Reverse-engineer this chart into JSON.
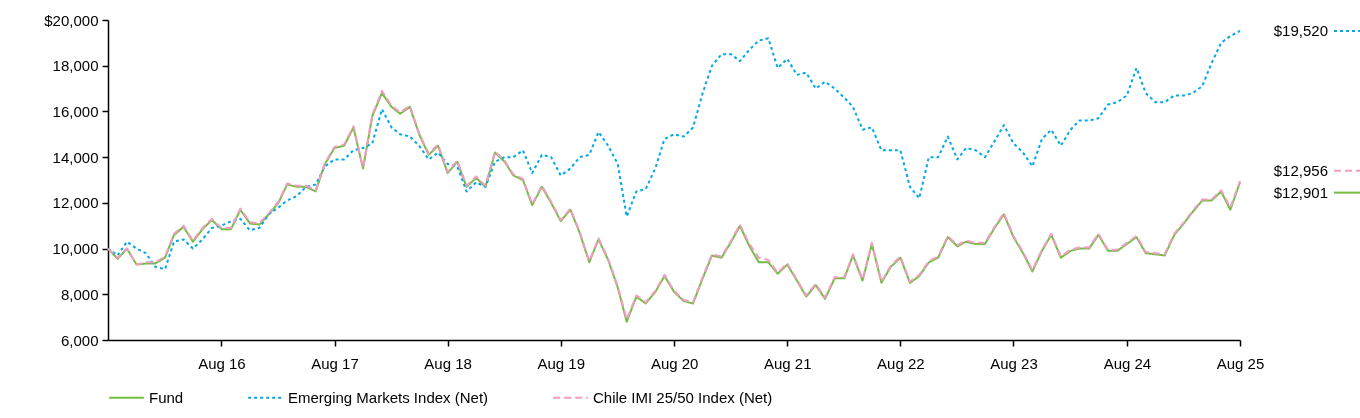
{
  "chart_data": {
    "type": "line",
    "x": [
      "2015-08",
      "2015-09",
      "2015-10",
      "2015-11",
      "2015-12",
      "2016-01",
      "2016-02",
      "2016-03",
      "2016-04",
      "2016-05",
      "2016-06",
      "2016-07",
      "2016-08",
      "2016-09",
      "2016-10",
      "2016-11",
      "2016-12",
      "2017-01",
      "2017-02",
      "2017-03",
      "2017-04",
      "2017-05",
      "2017-06",
      "2017-07",
      "2017-08",
      "2017-09",
      "2017-10",
      "2017-11",
      "2017-12",
      "2018-01",
      "2018-02",
      "2018-03",
      "2018-04",
      "2018-05",
      "2018-06",
      "2018-07",
      "2018-08",
      "2018-09",
      "2018-10",
      "2018-11",
      "2018-12",
      "2019-01",
      "2019-02",
      "2019-03",
      "2019-04",
      "2019-05",
      "2019-06",
      "2019-07",
      "2019-08",
      "2019-09",
      "2019-10",
      "2019-11",
      "2019-12",
      "2020-01",
      "2020-02",
      "2020-03",
      "2020-04",
      "2020-05",
      "2020-06",
      "2020-07",
      "2020-08",
      "2020-09",
      "2020-10",
      "2020-11",
      "2020-12",
      "2021-01",
      "2021-02",
      "2021-03",
      "2021-04",
      "2021-05",
      "2021-06",
      "2021-07",
      "2021-08",
      "2021-09",
      "2021-10",
      "2021-11",
      "2021-12",
      "2022-01",
      "2022-02",
      "2022-03",
      "2022-04",
      "2022-05",
      "2022-06",
      "2022-07",
      "2022-08",
      "2022-09",
      "2022-10",
      "2022-11",
      "2022-12",
      "2023-01",
      "2023-02",
      "2023-03",
      "2023-04",
      "2023-05",
      "2023-06",
      "2023-07",
      "2023-08",
      "2023-09",
      "2023-10",
      "2023-11",
      "2023-12",
      "2024-01",
      "2024-02",
      "2024-03",
      "2024-04",
      "2024-05",
      "2024-06",
      "2024-07",
      "2024-08",
      "2024-09",
      "2024-10",
      "2024-11",
      "2024-12",
      "2025-01",
      "2025-02",
      "2025-03",
      "2025-04",
      "2025-05",
      "2025-06",
      "2025-07",
      "2025-08"
    ],
    "series": [
      {
        "name": "Fund",
        "color": "#76bd43",
        "line_style": "solid",
        "values": [
          10000,
          9550,
          10000,
          9300,
          9350,
          9350,
          9600,
          10600,
          10950,
          10300,
          10850,
          11250,
          10850,
          10850,
          11700,
          11100,
          11050,
          11500,
          12000,
          12800,
          12700,
          12700,
          12500,
          13700,
          14400,
          14500,
          15300,
          13500,
          15800,
          16800,
          16200,
          15900,
          16200,
          15000,
          14100,
          14500,
          13300,
          13800,
          12700,
          13100,
          12700,
          14200,
          13800,
          13200,
          13000,
          11900,
          12700,
          12000,
          11200,
          11700,
          10700,
          9400,
          10400,
          9500,
          8300,
          6800,
          7900,
          7600,
          8100,
          8800,
          8100,
          7700,
          7600,
          8700,
          9700,
          9600,
          10300,
          11000,
          10100,
          9400,
          9400,
          8900,
          9300,
          8600,
          7900,
          8400,
          7800,
          8700,
          8700,
          9700,
          8600,
          10200,
          8500,
          9200,
          9600,
          8500,
          8800,
          9400,
          9600,
          10500,
          10100,
          10300,
          10200,
          10200,
          10900,
          11500,
          10500,
          9800,
          9000,
          9900,
          10600,
          9600,
          9900,
          10000,
          10000,
          10600,
          9900,
          9900,
          10200,
          10500,
          9800,
          9750,
          9700,
          10600,
          11100,
          11600,
          12100,
          12100,
          12500,
          11700,
          12901
        ]
      },
      {
        "name": "Emerging Markets Index (Net)",
        "color": "#00a9e8",
        "line_style": "dotted",
        "values": [
          10000,
          9700,
          10300,
          10000,
          9800,
          9200,
          9100,
          10300,
          10400,
          10000,
          10400,
          10900,
          11000,
          11200,
          11300,
          10800,
          10900,
          11500,
          11800,
          12100,
          12300,
          12700,
          12800,
          13600,
          13900,
          13900,
          14300,
          14400,
          14600,
          16100,
          15300,
          15000,
          14900,
          14500,
          13900,
          14200,
          13700,
          13600,
          12500,
          12900,
          12700,
          13800,
          14000,
          14000,
          14300,
          13300,
          14100,
          14000,
          13200,
          13500,
          14000,
          14100,
          15100,
          14500,
          13700,
          11400,
          12500,
          12600,
          13500,
          14800,
          15000,
          14900,
          15300,
          16800,
          18000,
          18500,
          18500,
          18200,
          18700,
          19100,
          19200,
          17900,
          18300,
          17600,
          17700,
          17000,
          17300,
          17000,
          16600,
          16200,
          15200,
          15300,
          14300,
          14300,
          14300,
          12700,
          12200,
          14000,
          14000,
          14900,
          13900,
          14400,
          14300,
          14000,
          14700,
          15400,
          14600,
          14200,
          13600,
          14800,
          15200,
          14500,
          15200,
          15600,
          15600,
          15700,
          16300,
          16400,
          16700,
          17900,
          16800,
          16400,
          16400,
          16700,
          16700,
          16800,
          17100,
          18100,
          19000,
          19300,
          19520
        ]
      },
      {
        "name": "Chile IMI 25/50 Index (Net)",
        "color": "#f29cc3",
        "line_style": "dashed",
        "values": [
          10000,
          9600,
          10000,
          9300,
          9400,
          9400,
          9650,
          10650,
          11000,
          10350,
          10900,
          11300,
          10900,
          10900,
          11750,
          11150,
          11100,
          11550,
          12050,
          12850,
          12750,
          12750,
          12550,
          13750,
          14450,
          14550,
          15350,
          13550,
          15850,
          16900,
          16250,
          15950,
          16250,
          15050,
          14150,
          14550,
          13350,
          13850,
          12750,
          13150,
          12750,
          14250,
          13850,
          13250,
          13050,
          11950,
          12750,
          12050,
          11250,
          11750,
          10750,
          9450,
          10450,
          9550,
          8350,
          6900,
          7950,
          7650,
          8150,
          8850,
          8150,
          7750,
          7650,
          8750,
          9750,
          9650,
          10350,
          11050,
          10200,
          9600,
          9500,
          8950,
          9350,
          8650,
          7950,
          8450,
          7850,
          8750,
          8750,
          9750,
          8650,
          10250,
          8550,
          9250,
          9650,
          8550,
          8850,
          9450,
          9650,
          10550,
          10150,
          10350,
          10250,
          10250,
          10950,
          11550,
          10550,
          9850,
          9050,
          9950,
          10650,
          9650,
          9950,
          10050,
          10050,
          10650,
          9950,
          9950,
          10250,
          10550,
          9850,
          9800,
          9750,
          10650,
          11150,
          11650,
          12150,
          12150,
          12550,
          11800,
          12956
        ]
      }
    ],
    "xlim": [
      "2015-08",
      "2025-08"
    ],
    "xticks": [
      {
        "value": "2016-08",
        "label": "Aug 16"
      },
      {
        "value": "2017-08",
        "label": "Aug 17"
      },
      {
        "value": "2018-08",
        "label": "Aug 18"
      },
      {
        "value": "2019-08",
        "label": "Aug 19"
      },
      {
        "value": "2020-08",
        "label": "Aug 20"
      },
      {
        "value": "2021-08",
        "label": "Aug 21"
      },
      {
        "value": "2022-08",
        "label": "Aug 22"
      },
      {
        "value": "2023-08",
        "label": "Aug 23"
      },
      {
        "value": "2024-08",
        "label": "Aug 24"
      },
      {
        "value": "2025-08",
        "label": "Aug 25"
      }
    ],
    "ylim": [
      6000,
      20000
    ],
    "yticks": [
      {
        "value": 6000,
        "label": "6,000"
      },
      {
        "value": 8000,
        "label": "8,000"
      },
      {
        "value": 10000,
        "label": "10,000"
      },
      {
        "value": 12000,
        "label": "12,000"
      },
      {
        "value": 14000,
        "label": "14,000"
      },
      {
        "value": 16000,
        "label": "16,000"
      },
      {
        "value": 18000,
        "label": "18,000"
      },
      {
        "value": 20000,
        "label": "$20,000"
      }
    ],
    "annotations": [
      {
        "text": "$19,520",
        "x": "2025-08",
        "y": 19520
      },
      {
        "text": "$12,956",
        "x": "2025-08",
        "y": 12956
      },
      {
        "text": "$12,901",
        "x": "2025-08",
        "y": 12901
      }
    ],
    "grid": false,
    "legend": "bottom"
  }
}
